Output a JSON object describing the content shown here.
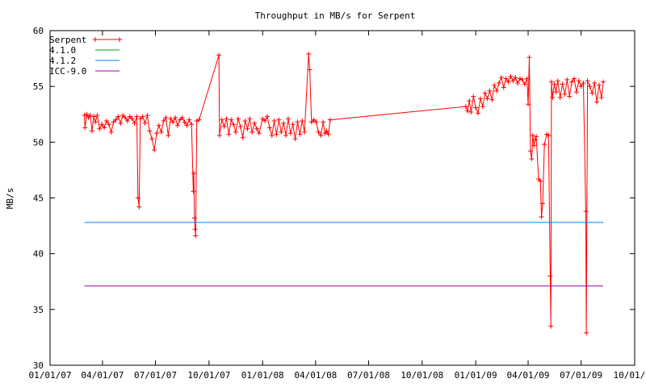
{
  "chart_data": {
    "type": "line",
    "title": "Throughput in MB/s for Serpent",
    "xlabel": "",
    "ylabel": "MB/s",
    "xlim": [
      "2007-01-01",
      "2009-10-01"
    ],
    "ylim": [
      30,
      60
    ],
    "x_ticks": [
      "01/01/07",
      "04/01/07",
      "07/01/07",
      "10/01/07",
      "01/01/08",
      "04/01/08",
      "07/01/08",
      "10/01/08",
      "01/01/09",
      "04/01/09",
      "07/01/09",
      "10/01/09"
    ],
    "y_ticks": [
      "30",
      "35",
      "40",
      "45",
      "50",
      "55",
      "60"
    ],
    "grid": false,
    "legend_position": "top-left",
    "series": [
      {
        "name": "Serpent",
        "color": "#ff0000",
        "marker": "plus",
        "points": [
          [
            "2007-03-01",
            52.4
          ],
          [
            "2007-03-02",
            51.3
          ],
          [
            "2007-03-05",
            52.5
          ],
          [
            "2007-03-08",
            52.2
          ],
          [
            "2007-03-11",
            52.4
          ],
          [
            "2007-03-14",
            51.0
          ],
          [
            "2007-03-17",
            52.3
          ],
          [
            "2007-03-20",
            51.8
          ],
          [
            "2007-03-23",
            52.4
          ],
          [
            "2007-03-27",
            51.2
          ],
          [
            "2007-03-31",
            51.6
          ],
          [
            "2007-04-04",
            51.3
          ],
          [
            "2007-04-08",
            51.9
          ],
          [
            "2007-04-12",
            51.6
          ],
          [
            "2007-04-16",
            50.9
          ],
          [
            "2007-04-20",
            51.8
          ],
          [
            "2007-04-24",
            52.0
          ],
          [
            "2007-04-28",
            52.3
          ],
          [
            "2007-05-02",
            51.7
          ],
          [
            "2007-05-06",
            52.4
          ],
          [
            "2007-05-10",
            52.2
          ],
          [
            "2007-05-14",
            51.9
          ],
          [
            "2007-05-18",
            52.3
          ],
          [
            "2007-05-22",
            52.1
          ],
          [
            "2007-05-26",
            51.7
          ],
          [
            "2007-05-30",
            52.3
          ],
          [
            "2007-06-01",
            45.0
          ],
          [
            "2007-06-03",
            44.2
          ],
          [
            "2007-06-05",
            52.1
          ],
          [
            "2007-06-09",
            52.3
          ],
          [
            "2007-06-13",
            51.7
          ],
          [
            "2007-06-17",
            52.4
          ],
          [
            "2007-06-21",
            51.0
          ],
          [
            "2007-06-25",
            50.3
          ],
          [
            "2007-06-29",
            49.3
          ],
          [
            "2007-07-03",
            50.8
          ],
          [
            "2007-07-07",
            51.5
          ],
          [
            "2007-07-11",
            50.9
          ],
          [
            "2007-07-15",
            51.9
          ],
          [
            "2007-07-19",
            52.2
          ],
          [
            "2007-07-23",
            50.6
          ],
          [
            "2007-07-27",
            52.1
          ],
          [
            "2007-07-31",
            51.8
          ],
          [
            "2007-08-04",
            52.2
          ],
          [
            "2007-08-08",
            51.5
          ],
          [
            "2007-08-12",
            52.0
          ],
          [
            "2007-08-16",
            52.2
          ],
          [
            "2007-08-20",
            51.8
          ],
          [
            "2007-08-24",
            51.5
          ],
          [
            "2007-08-28",
            52.0
          ],
          [
            "2007-09-01",
            51.6
          ],
          [
            "2007-09-04",
            45.6
          ],
          [
            "2007-09-05",
            47.2
          ],
          [
            "2007-09-06",
            43.2
          ],
          [
            "2007-09-07",
            42.2
          ],
          [
            "2007-09-08",
            41.6
          ],
          [
            "2007-09-10",
            51.9
          ],
          [
            "2007-09-14",
            52.0
          ],
          [
            "2007-10-18",
            57.8
          ],
          [
            "2007-10-19",
            50.6
          ],
          [
            "2007-10-23",
            52.0
          ],
          [
            "2007-10-27",
            51.4
          ],
          [
            "2007-10-31",
            52.1
          ],
          [
            "2007-11-04",
            50.7
          ],
          [
            "2007-11-08",
            52.0
          ],
          [
            "2007-11-12",
            51.6
          ],
          [
            "2007-11-16",
            50.9
          ],
          [
            "2007-11-20",
            52.1
          ],
          [
            "2007-11-24",
            51.4
          ],
          [
            "2007-11-28",
            50.4
          ],
          [
            "2007-12-02",
            51.9
          ],
          [
            "2007-12-06",
            51.2
          ],
          [
            "2007-12-10",
            52.1
          ],
          [
            "2007-12-14",
            50.9
          ],
          [
            "2007-12-18",
            51.7
          ],
          [
            "2007-12-22",
            51.2
          ],
          [
            "2007-12-26",
            50.8
          ],
          [
            "2008-01-01",
            52.1
          ],
          [
            "2008-01-05",
            51.9
          ],
          [
            "2008-01-09",
            52.3
          ],
          [
            "2008-01-13",
            51.3
          ],
          [
            "2008-01-17",
            50.6
          ],
          [
            "2008-01-21",
            51.9
          ],
          [
            "2008-01-25",
            50.7
          ],
          [
            "2008-01-29",
            52.0
          ],
          [
            "2008-02-02",
            50.9
          ],
          [
            "2008-02-06",
            51.7
          ],
          [
            "2008-02-10",
            50.6
          ],
          [
            "2008-02-14",
            52.1
          ],
          [
            "2008-02-18",
            50.8
          ],
          [
            "2008-02-22",
            51.6
          ],
          [
            "2008-02-26",
            50.3
          ],
          [
            "2008-03-01",
            51.8
          ],
          [
            "2008-03-05",
            50.7
          ],
          [
            "2008-03-09",
            51.9
          ],
          [
            "2008-03-13",
            50.9
          ],
          [
            "2008-03-20",
            57.9
          ],
          [
            "2008-03-22",
            56.5
          ],
          [
            "2008-03-25",
            51.8
          ],
          [
            "2008-03-29",
            52.0
          ],
          [
            "2008-04-02",
            51.8
          ],
          [
            "2008-04-06",
            50.9
          ],
          [
            "2008-04-10",
            50.6
          ],
          [
            "2008-04-14",
            51.8
          ],
          [
            "2008-04-17",
            50.8
          ],
          [
            "2008-04-20",
            51.0
          ],
          [
            "2008-04-23",
            50.7
          ],
          [
            "2008-04-26",
            52.0
          ],
          [
            "2008-12-15",
            53.2
          ],
          [
            "2008-12-18",
            52.8
          ],
          [
            "2008-12-21",
            53.7
          ],
          [
            "2008-12-24",
            52.7
          ],
          [
            "2008-12-28",
            54.1
          ],
          [
            "2009-01-01",
            53.1
          ],
          [
            "2009-01-05",
            52.6
          ],
          [
            "2009-01-09",
            53.9
          ],
          [
            "2009-01-13",
            53.2
          ],
          [
            "2009-01-17",
            54.4
          ],
          [
            "2009-01-21",
            53.9
          ],
          [
            "2009-01-25",
            54.6
          ],
          [
            "2009-01-29",
            53.8
          ],
          [
            "2009-02-02",
            55.1
          ],
          [
            "2009-02-06",
            54.6
          ],
          [
            "2009-02-10",
            55.3
          ],
          [
            "2009-02-14",
            55.8
          ],
          [
            "2009-02-18",
            54.9
          ],
          [
            "2009-02-22",
            55.7
          ],
          [
            "2009-02-26",
            55.4
          ],
          [
            "2009-03-02",
            55.9
          ],
          [
            "2009-03-06",
            55.5
          ],
          [
            "2009-03-10",
            55.8
          ],
          [
            "2009-03-14",
            55.3
          ],
          [
            "2009-03-18",
            55.7
          ],
          [
            "2009-03-22",
            55.6
          ],
          [
            "2009-03-26",
            55.2
          ],
          [
            "2009-03-30",
            55.7
          ],
          [
            "2009-04-01",
            53.4
          ],
          [
            "2009-04-03",
            57.6
          ],
          [
            "2009-04-05",
            49.2
          ],
          [
            "2009-04-07",
            48.5
          ],
          [
            "2009-04-09",
            50.6
          ],
          [
            "2009-04-11",
            49.7
          ],
          [
            "2009-04-13",
            50.2
          ],
          [
            "2009-04-15",
            50.5
          ],
          [
            "2009-04-19",
            46.7
          ],
          [
            "2009-04-22",
            46.5
          ],
          [
            "2009-04-24",
            43.3
          ],
          [
            "2009-04-26",
            44.5
          ],
          [
            "2009-04-29",
            49.8
          ],
          [
            "2009-05-03",
            50.7
          ],
          [
            "2009-05-06",
            50.6
          ],
          [
            "2009-05-09",
            38.0
          ],
          [
            "2009-05-10",
            33.5
          ],
          [
            "2009-05-11",
            55.4
          ],
          [
            "2009-05-13",
            54.0
          ],
          [
            "2009-05-16",
            55.2
          ],
          [
            "2009-05-19",
            54.5
          ],
          [
            "2009-05-22",
            55.5
          ],
          [
            "2009-05-26",
            54.0
          ],
          [
            "2009-05-30",
            55.2
          ],
          [
            "2009-06-03",
            54.3
          ],
          [
            "2009-06-07",
            55.6
          ],
          [
            "2009-06-11",
            54.1
          ],
          [
            "2009-06-15",
            55.4
          ],
          [
            "2009-06-19",
            55.7
          ],
          [
            "2009-06-23",
            54.5
          ],
          [
            "2009-06-27",
            55.5
          ],
          [
            "2009-07-01",
            55.0
          ],
          [
            "2009-07-05",
            55.3
          ],
          [
            "2009-07-09",
            43.8
          ],
          [
            "2009-07-10",
            32.9
          ],
          [
            "2009-07-12",
            55.5
          ],
          [
            "2009-07-16",
            55.0
          ],
          [
            "2009-07-20",
            54.4
          ],
          [
            "2009-07-24",
            55.3
          ],
          [
            "2009-07-28",
            53.6
          ],
          [
            "2009-08-01",
            55.1
          ],
          [
            "2009-08-05",
            54.0
          ],
          [
            "2009-08-08",
            55.4
          ]
        ]
      },
      {
        "name": "4.1.0",
        "color": "#00a000",
        "points": []
      },
      {
        "name": "4.1.2",
        "color": "#0080ff",
        "points": [
          [
            "2007-03-01",
            42.8
          ],
          [
            "2009-08-08",
            42.8
          ]
        ]
      },
      {
        "name": "ICC-9.0",
        "color": "#a000a0",
        "points": [
          [
            "2007-03-01",
            37.1
          ],
          [
            "2009-08-08",
            37.1
          ]
        ]
      }
    ]
  }
}
